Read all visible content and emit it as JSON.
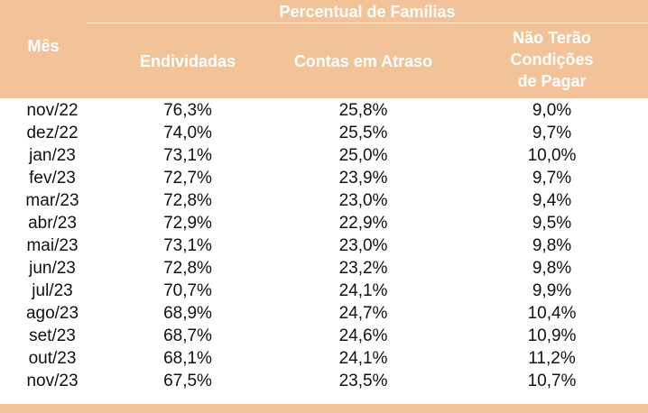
{
  "table": {
    "group_header": "Percentual de Famílias",
    "col_month": "Mês",
    "col_indebted": "Endividadas",
    "col_overdue": "Contas em Atraso",
    "col_unable": [
      "Não Terão",
      "Condições",
      "de Pagar"
    ],
    "rows": [
      {
        "month": "nov/22",
        "indebted": "76,3%",
        "overdue": "25,8%",
        "unable": "9,0%"
      },
      {
        "month": "dez/22",
        "indebted": "74,0%",
        "overdue": "25,5%",
        "unable": "9,7%"
      },
      {
        "month": "jan/23",
        "indebted": "73,1%",
        "overdue": "25,0%",
        "unable": "10,0%"
      },
      {
        "month": "fev/23",
        "indebted": "72,7%",
        "overdue": "23,9%",
        "unable": "9,7%"
      },
      {
        "month": "mar/23",
        "indebted": "72,8%",
        "overdue": "23,0%",
        "unable": "9,4%"
      },
      {
        "month": "abr/23",
        "indebted": "72,9%",
        "overdue": "22,9%",
        "unable": "9,5%"
      },
      {
        "month": "mai/23",
        "indebted": "73,1%",
        "overdue": "23,0%",
        "unable": "9,8%"
      },
      {
        "month": "jun/23",
        "indebted": "72,8%",
        "overdue": "23,2%",
        "unable": "9,8%"
      },
      {
        "month": "jul/23",
        "indebted": "70,7%",
        "overdue": "24,1%",
        "unable": "9,9%"
      },
      {
        "month": "ago/23",
        "indebted": "68,9%",
        "overdue": "24,7%",
        "unable": "10,4%"
      },
      {
        "month": "set/23",
        "indebted": "68,7%",
        "overdue": "24,6%",
        "unable": "10,9%"
      },
      {
        "month": "out/23",
        "indebted": "68,1%",
        "overdue": "24,1%",
        "unable": "11,2%"
      },
      {
        "month": "nov/23",
        "indebted": "67,5%",
        "overdue": "23,5%",
        "unable": "10,7%"
      }
    ]
  },
  "colors": {
    "header_bg": "#f2c398",
    "header_text": "#ffffff",
    "body_text": "#111111"
  }
}
